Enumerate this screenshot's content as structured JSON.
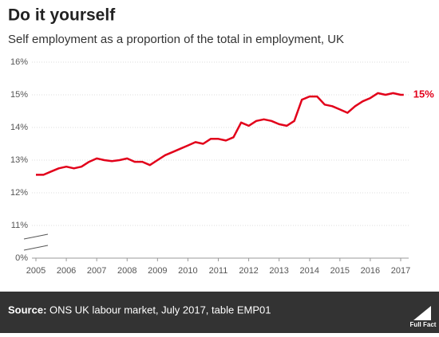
{
  "chart_data": {
    "type": "line",
    "title": "Do it yourself",
    "subtitle": "Self employment as a proportion of the total in employment, UK",
    "x": [
      2005.0,
      2005.25,
      2005.5,
      2005.75,
      2006.0,
      2006.25,
      2006.5,
      2006.75,
      2007.0,
      2007.25,
      2007.5,
      2007.75,
      2008.0,
      2008.25,
      2008.5,
      2008.75,
      2009.0,
      2009.25,
      2009.5,
      2009.75,
      2010.0,
      2010.25,
      2010.5,
      2010.75,
      2011.0,
      2011.25,
      2011.5,
      2011.75,
      2012.0,
      2012.25,
      2012.5,
      2012.75,
      2013.0,
      2013.25,
      2013.5,
      2013.75,
      2014.0,
      2014.25,
      2014.5,
      2014.75,
      2015.0,
      2015.25,
      2015.5,
      2015.75,
      2016.0,
      2016.25,
      2016.5,
      2016.75,
      2017.0,
      2017.1
    ],
    "series": [
      {
        "name": "Self employment share",
        "color": "#e2001a",
        "values": [
          12.55,
          12.55,
          12.65,
          12.75,
          12.8,
          12.75,
          12.8,
          12.95,
          13.05,
          13.0,
          12.97,
          13.0,
          13.05,
          12.95,
          12.95,
          12.85,
          13.0,
          13.15,
          13.25,
          13.35,
          13.45,
          13.55,
          13.5,
          13.65,
          13.65,
          13.6,
          13.7,
          14.15,
          14.05,
          14.2,
          14.25,
          14.2,
          14.1,
          14.05,
          14.2,
          14.85,
          14.95,
          14.95,
          14.7,
          14.65,
          14.55,
          14.45,
          14.65,
          14.8,
          14.9,
          15.05,
          15.0,
          15.05,
          15.0,
          15.0
        ]
      }
    ],
    "end_label": "15%",
    "xlim": [
      2005,
      2017
    ],
    "xticks": [
      2005,
      2006,
      2007,
      2008,
      2009,
      2010,
      2011,
      2012,
      2013,
      2014,
      2015,
      2016,
      2017
    ],
    "ylim": [
      10,
      16
    ],
    "axis_break": true,
    "yticks": [
      {
        "value": 0,
        "label": "0%"
      },
      {
        "value": 11,
        "label": "11%"
      },
      {
        "value": 12,
        "label": "12%"
      },
      {
        "value": 13,
        "label": "13%"
      },
      {
        "value": 14,
        "label": "14%"
      },
      {
        "value": 15,
        "label": "15%"
      },
      {
        "value": 16,
        "label": "16%"
      }
    ],
    "grid": true,
    "source_label": "Source:",
    "source": "ONS UK labour market, July 2017, table EMP01",
    "logo": "Full Fact"
  }
}
